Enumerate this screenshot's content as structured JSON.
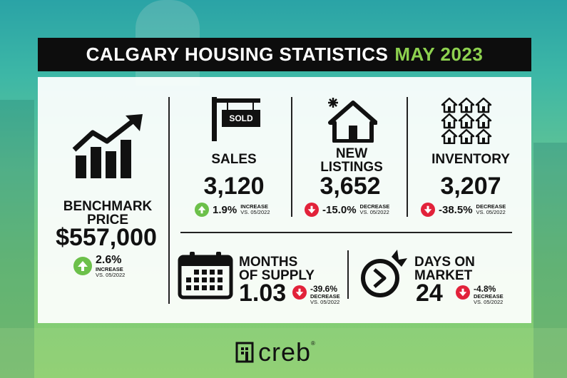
{
  "title": {
    "main": "CALGARY HOUSING STATISTICS",
    "highlight": "MAY 2023",
    "highlight_color": "#8dd14f"
  },
  "sold_sign": "SOLD",
  "benchmark": {
    "label_line1": "BENCHMARK",
    "label_line2": "PRICE",
    "value": "$557,000",
    "change": "2.6%",
    "direction": "INCREASE",
    "compare": "VS. 05/2022",
    "icon": "rising-bar-chart-icon"
  },
  "sales": {
    "label": "SALES",
    "value": "3,120",
    "change": "1.9%",
    "direction": "INCREASE",
    "compare": "VS. 05/2022",
    "icon": "sold-sign-icon"
  },
  "new_listings": {
    "label_line1": "NEW",
    "label_line2": "LISTINGS",
    "value": "3,652",
    "change": "-15.0%",
    "direction": "DECREASE",
    "compare": "VS. 05/2022",
    "icon": "new-house-icon"
  },
  "inventory": {
    "label": "INVENTORY",
    "value": "3,207",
    "change": "-38.5%",
    "direction": "DECREASE",
    "compare": "VS. 05/2022",
    "icon": "houses-grid-icon"
  },
  "months_supply": {
    "label_line1": "MONTHS",
    "label_line2": "OF SUPPLY",
    "value": "1.03",
    "change": "-39.6%",
    "direction": "DECREASE",
    "compare": "VS. 05/2022",
    "icon": "calendar-icon"
  },
  "days_on_market": {
    "label_line1": "DAYS ON",
    "label_line2": "MARKET",
    "value": "24",
    "change": "-4.8%",
    "direction": "DECREASE",
    "compare": "VS. 05/2022",
    "icon": "fast-clock-icon"
  },
  "logo": {
    "word": "creb",
    "mark": "®"
  },
  "colors": {
    "increase": "#6cc04a",
    "decrease": "#e2223a"
  }
}
